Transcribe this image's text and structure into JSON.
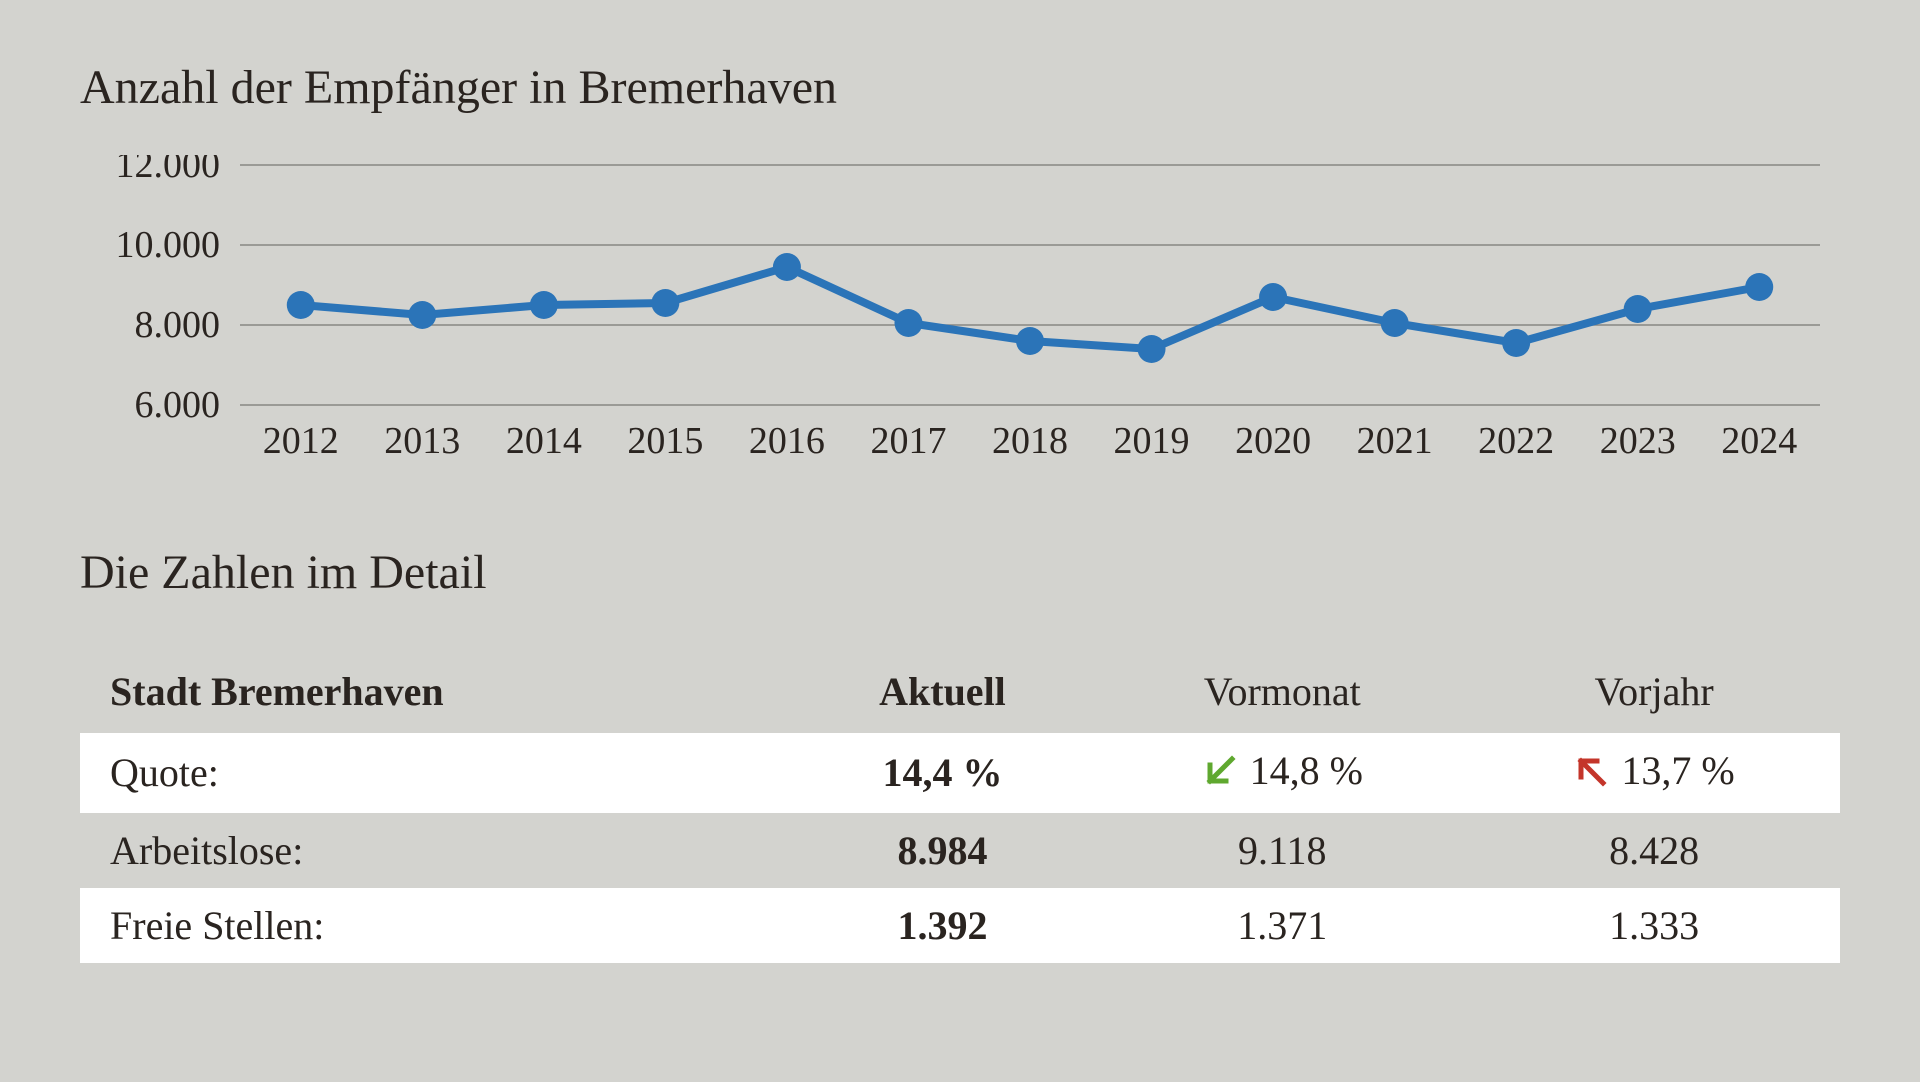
{
  "chart": {
    "title": "Anzahl der Empfänger in Bremerhaven",
    "type": "line",
    "line_color": "#2b74b8",
    "marker_color": "#2b74b8",
    "marker_radius": 14,
    "line_width": 8,
    "background_color": "#d3d3cf",
    "grid_color": "#888884",
    "text_color": "#2a2420",
    "y_ticks": [
      6000,
      8000,
      10000,
      12000
    ],
    "y_tick_labels": [
      "6.000",
      "8.000",
      "10.000",
      "12.000"
    ],
    "ylim": [
      6000,
      12000
    ],
    "x_labels": [
      "2012",
      "2013",
      "2014",
      "2015",
      "2016",
      "2017",
      "2018",
      "2019",
      "2020",
      "2021",
      "2022",
      "2023",
      "2024"
    ],
    "values": [
      8500,
      8250,
      8500,
      8550,
      9450,
      8050,
      7600,
      7400,
      8700,
      8050,
      7550,
      8400,
      8950
    ],
    "label_fontsize": 38
  },
  "detail": {
    "title": "Die Zahlen im Detail",
    "headers": {
      "region": "Stadt Bremerhaven",
      "current": "Aktuell",
      "prev_month": "Vormonat",
      "prev_year": "Vorjahr"
    },
    "rows": [
      {
        "label": "Quote:",
        "current": "14,4 %",
        "prev_month": "14,8 %",
        "prev_month_arrow": "down-green",
        "prev_year": "13,7 %",
        "prev_year_arrow": "up-red",
        "white_bg": true
      },
      {
        "label": "Arbeitslose:",
        "current": "8.984",
        "prev_month": "9.118",
        "prev_year": "8.428",
        "white_bg": false
      },
      {
        "label": "Freie Stellen:",
        "current": "1.392",
        "prev_month": "1.371",
        "prev_year": "1.333",
        "white_bg": true
      }
    ],
    "arrow_colors": {
      "down-green": "#5fa82f",
      "up-red": "#c4352a"
    }
  }
}
